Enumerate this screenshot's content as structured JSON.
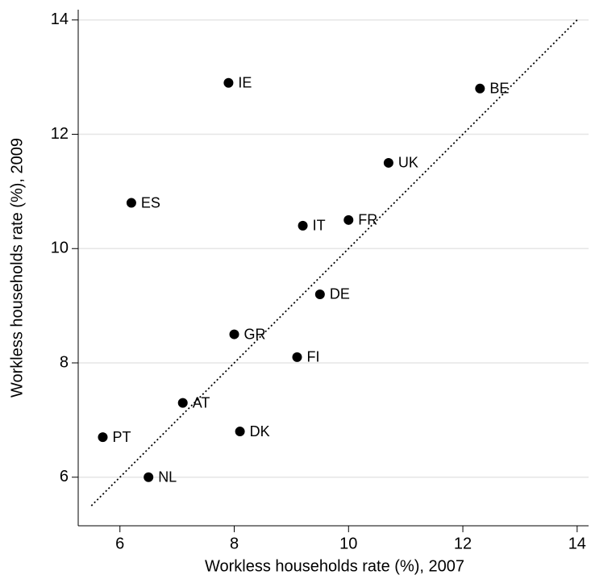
{
  "chart_data": {
    "type": "scatter",
    "x_label": "Workless households rate (%), 2007",
    "y_label": "Workless households rate (%), 2009",
    "point_labels": [
      "PT",
      "NL",
      "ES",
      "AT",
      "IE",
      "GR",
      "DK",
      "FI",
      "IT",
      "DE",
      "FR",
      "UK",
      "BE"
    ],
    "x": [
      5.7,
      6.5,
      6.2,
      7.1,
      7.9,
      8.0,
      8.1,
      9.1,
      9.2,
      9.5,
      10.0,
      10.7,
      12.3
    ],
    "values": [
      6.7,
      6.0,
      10.8,
      7.3,
      12.9,
      8.5,
      6.8,
      8.1,
      10.4,
      9.2,
      10.5,
      11.5,
      12.8
    ],
    "color": "#000000",
    "reference_line": {
      "x": [
        5.5,
        14
      ],
      "y": [
        5.5,
        14
      ]
    },
    "xlim": [
      5.27,
      14.2
    ],
    "ylim": [
      5.15,
      14.18
    ],
    "xticks": [
      6,
      8,
      10,
      12,
      14
    ],
    "yticks": [
      6,
      8,
      10,
      12,
      14
    ],
    "grid": true
  }
}
